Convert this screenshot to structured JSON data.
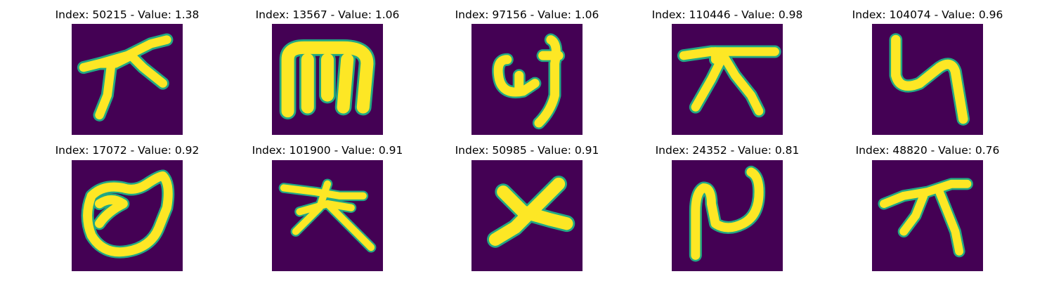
{
  "panels": [
    {
      "title": "Index: 50215 - Value: 1.38"
    },
    {
      "title": "Index: 13567 - Value: 1.06"
    },
    {
      "title": "Index: 97156 - Value: 1.06"
    },
    {
      "title": "Index: 110446 - Value: 0.98"
    },
    {
      "title": "Index: 104074 - Value: 0.96"
    },
    {
      "title": "Index: 17072 - Value: 0.92"
    },
    {
      "title": "Index: 101900 - Value: 0.91"
    },
    {
      "title": "Index: 50985 - Value: 0.91"
    },
    {
      "title": "Index: 24352 - Value: 0.81"
    },
    {
      "title": "Index: 48820 - Value: 0.76"
    }
  ],
  "colors": {
    "background": "#440154",
    "stroke": "#fde725",
    "edge": "#22a884"
  }
}
